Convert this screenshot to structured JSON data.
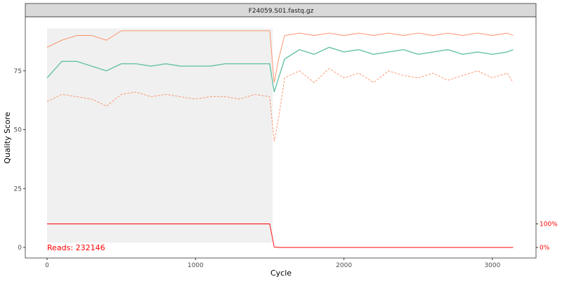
{
  "chart_data": {
    "type": "line",
    "title": "F24059.S01.fastq.gz",
    "xlabel": "Cycle",
    "ylabel": "Quality Score",
    "xlim": [
      -150,
      3290
    ],
    "ylim": [
      -5,
      97
    ],
    "x_ticks": [
      0,
      1000,
      2000,
      3000
    ],
    "y_ticks": [
      0,
      25,
      50,
      75
    ],
    "secondary_y_ticks": [
      "0%",
      "100%"
    ],
    "grid": false,
    "annotation": "Reads:  232146",
    "heatmap_range": {
      "cycles": [
        0,
        1520
      ],
      "quality": [
        2,
        93
      ]
    },
    "x": [
      0,
      100,
      200,
      300,
      400,
      500,
      600,
      700,
      800,
      900,
      1000,
      1100,
      1200,
      1300,
      1400,
      1500,
      1530,
      1560,
      1600,
      1700,
      1800,
      1900,
      2000,
      2100,
      2200,
      2300,
      2400,
      2500,
      2600,
      2700,
      2800,
      2900,
      3000,
      3100,
      3140
    ],
    "series": [
      {
        "role": "mean",
        "color": "#66c2a5",
        "style": "solid",
        "values": [
          72,
          79,
          79,
          77,
          75,
          78,
          78,
          77,
          78,
          77,
          77,
          77,
          78,
          78,
          78,
          78,
          66,
          72,
          80,
          84,
          82,
          85,
          83,
          84,
          82,
          83,
          84,
          82,
          83,
          84,
          82,
          83,
          82,
          83,
          84
        ]
      },
      {
        "role": "median",
        "color": "#fc8d62",
        "style": "solid",
        "values": [
          85,
          88,
          90,
          90,
          88,
          92,
          92,
          92,
          92,
          92,
          92,
          92,
          92,
          92,
          92,
          92,
          70,
          80,
          90,
          91,
          90,
          91,
          90,
          91,
          90,
          91,
          90,
          91,
          90,
          91,
          90,
          91,
          90,
          91,
          90
        ]
      },
      {
        "role": "quartiles",
        "color": "#fc8d62",
        "style": "dashed",
        "values": [
          62,
          65,
          64,
          63,
          60,
          65,
          66,
          64,
          65,
          64,
          63,
          64,
          64,
          63,
          65,
          64,
          45,
          55,
          72,
          75,
          70,
          76,
          72,
          74,
          70,
          75,
          73,
          72,
          74,
          71,
          73,
          75,
          72,
          74,
          70
        ]
      },
      {
        "role": "reads-percent",
        "color": "#ff0000",
        "style": "solid",
        "values": [
          100,
          100,
          100,
          100,
          100,
          100,
          100,
          100,
          100,
          100,
          100,
          100,
          100,
          100,
          100,
          100,
          2,
          0,
          0,
          0,
          0,
          0,
          0,
          0,
          0,
          0,
          0,
          0,
          0,
          0,
          0,
          0,
          0,
          0,
          0
        ]
      }
    ]
  }
}
